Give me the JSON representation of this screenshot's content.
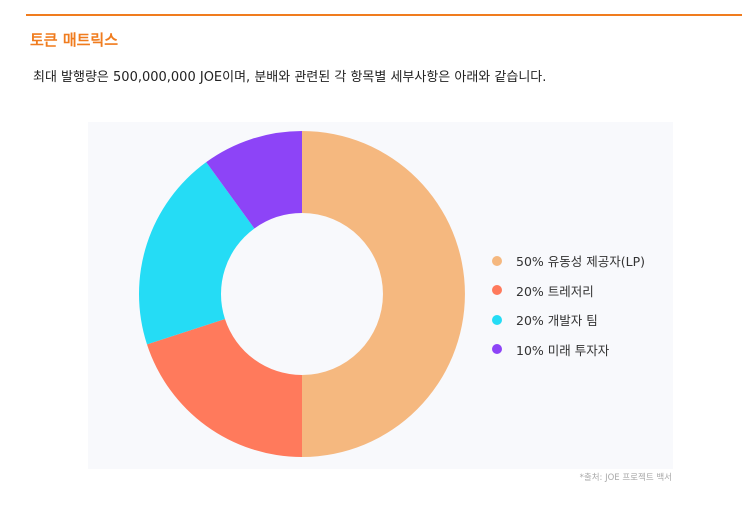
{
  "section": {
    "title": "토큰 매트릭스"
  },
  "intro": {
    "text": "최대 발행량은 500,000,000 JOE이며, 분배와 관련된 각 항목별 세부사항은 아래와 같습니다."
  },
  "chart_data": {
    "type": "pie",
    "style": "donut",
    "title": "",
    "legend_position": "right",
    "slices": [
      {
        "label": "50% 유동성 제공자(LP)",
        "value": 50,
        "color": "#f5b87f"
      },
      {
        "label": "20% 트레저리",
        "value": 20,
        "color": "#ff7a5c"
      },
      {
        "label": "20% 개발자 팀",
        "value": 20,
        "color": "#25dcf5"
      },
      {
        "label": "10% 미래 투자자",
        "value": 10,
        "color": "#8d44f7"
      }
    ]
  },
  "source": {
    "note": "*출처: JOE 프로젝트 백서"
  }
}
